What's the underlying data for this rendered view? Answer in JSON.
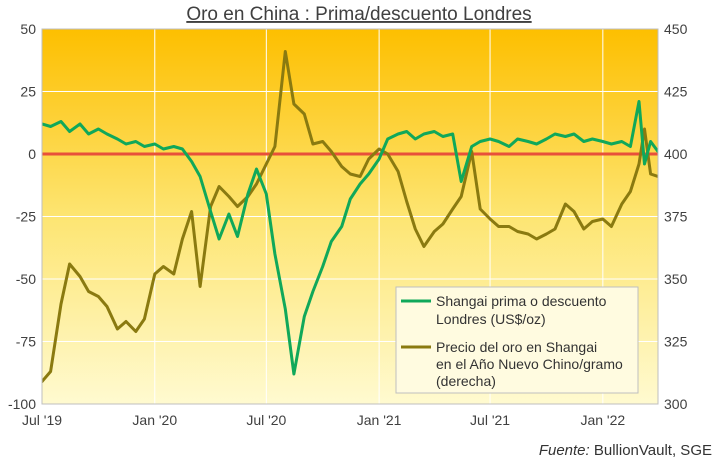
{
  "chart_data": {
    "type": "line",
    "title": "Oro en China : Prima/descuento  Londres",
    "source_prefix": "Fuente:",
    "source_text": " BullionVault, SGE",
    "x_ticks": [
      "Jul '19",
      "Jan '20",
      "Jul '20",
      "Jan '21",
      "Jul '21",
      "Jan '22"
    ],
    "y_left": {
      "ticks": [
        "50",
        "25",
        "0",
        "-25",
        "-50",
        "-75",
        "-100"
      ],
      "lim": [
        -100,
        50
      ]
    },
    "y_right": {
      "ticks": [
        "450",
        "425",
        "400",
        "375",
        "350",
        "325",
        "300"
      ],
      "lim": [
        300,
        450
      ]
    },
    "x_range": [
      "2019-07",
      "2022-04"
    ],
    "zero_line_color": "#e8503a",
    "grid": true,
    "legend_position": "bottom-right",
    "series": [
      {
        "name": "Shangai prima o descuento Londres (US$/oz)",
        "axis": "left",
        "color": "#10a85a",
        "points": [
          [
            "2019-07-01",
            12
          ],
          [
            "2019-07-15",
            11
          ],
          [
            "2019-08-01",
            13
          ],
          [
            "2019-08-15",
            9
          ],
          [
            "2019-09-01",
            12
          ],
          [
            "2019-09-15",
            8
          ],
          [
            "2019-10-01",
            10
          ],
          [
            "2019-10-15",
            8
          ],
          [
            "2019-11-01",
            6
          ],
          [
            "2019-11-15",
            4
          ],
          [
            "2019-12-01",
            5
          ],
          [
            "2019-12-15",
            3
          ],
          [
            "2020-01-01",
            4
          ],
          [
            "2020-01-15",
            2
          ],
          [
            "2020-02-01",
            3
          ],
          [
            "2020-02-15",
            2
          ],
          [
            "2020-03-01",
            -3
          ],
          [
            "2020-03-15",
            -9
          ],
          [
            "2020-04-01",
            -23
          ],
          [
            "2020-04-15",
            -34
          ],
          [
            "2020-05-01",
            -24
          ],
          [
            "2020-05-15",
            -33
          ],
          [
            "2020-06-01",
            -16
          ],
          [
            "2020-06-15",
            -6
          ],
          [
            "2020-07-01",
            -16
          ],
          [
            "2020-07-15",
            -40
          ],
          [
            "2020-08-01",
            -62
          ],
          [
            "2020-08-15",
            -88
          ],
          [
            "2020-09-01",
            -65
          ],
          [
            "2020-09-15",
            -55
          ],
          [
            "2020-10-01",
            -45
          ],
          [
            "2020-10-15",
            -35
          ],
          [
            "2020-11-01",
            -29
          ],
          [
            "2020-11-15",
            -18
          ],
          [
            "2020-12-01",
            -12
          ],
          [
            "2020-12-15",
            -8
          ],
          [
            "2021-01-01",
            -2
          ],
          [
            "2021-01-15",
            6
          ],
          [
            "2021-02-01",
            8
          ],
          [
            "2021-02-15",
            9
          ],
          [
            "2021-03-01",
            6
          ],
          [
            "2021-03-15",
            8
          ],
          [
            "2021-04-01",
            9
          ],
          [
            "2021-04-15",
            7
          ],
          [
            "2021-05-01",
            8
          ],
          [
            "2021-05-15",
            -11
          ],
          [
            "2021-06-01",
            3
          ],
          [
            "2021-06-15",
            5
          ],
          [
            "2021-07-01",
            6
          ],
          [
            "2021-07-15",
            5
          ],
          [
            "2021-08-01",
            3
          ],
          [
            "2021-08-15",
            6
          ],
          [
            "2021-09-01",
            5
          ],
          [
            "2021-09-15",
            4
          ],
          [
            "2021-10-01",
            6
          ],
          [
            "2021-10-15",
            8
          ],
          [
            "2021-11-01",
            7
          ],
          [
            "2021-11-15",
            8
          ],
          [
            "2021-12-01",
            5
          ],
          [
            "2021-12-15",
            6
          ],
          [
            "2022-01-01",
            5
          ],
          [
            "2022-01-15",
            4
          ],
          [
            "2022-02-01",
            5
          ],
          [
            "2022-02-15",
            3
          ],
          [
            "2022-03-01",
            21
          ],
          [
            "2022-03-10",
            -4
          ],
          [
            "2022-03-20",
            5
          ],
          [
            "2022-04-01",
            1
          ]
        ]
      },
      {
        "name": "Precio del oro en Shangai en el Año Nuevo Chino/gramo (derecha)",
        "axis": "right",
        "color": "#8a7a10",
        "points": [
          [
            "2019-07-01",
            309
          ],
          [
            "2019-07-15",
            313
          ],
          [
            "2019-08-01",
            340
          ],
          [
            "2019-08-15",
            356
          ],
          [
            "2019-09-01",
            351
          ],
          [
            "2019-09-15",
            345
          ],
          [
            "2019-10-01",
            343
          ],
          [
            "2019-10-15",
            339
          ],
          [
            "2019-11-01",
            330
          ],
          [
            "2019-11-15",
            333
          ],
          [
            "2019-12-01",
            329
          ],
          [
            "2019-12-15",
            334
          ],
          [
            "2020-01-01",
            352
          ],
          [
            "2020-01-15",
            355
          ],
          [
            "2020-02-01",
            352
          ],
          [
            "2020-02-15",
            366
          ],
          [
            "2020-03-01",
            377
          ],
          [
            "2020-03-15",
            347
          ],
          [
            "2020-04-01",
            379
          ],
          [
            "2020-04-15",
            387
          ],
          [
            "2020-05-01",
            383
          ],
          [
            "2020-05-15",
            379
          ],
          [
            "2020-06-01",
            383
          ],
          [
            "2020-06-15",
            388
          ],
          [
            "2020-07-01",
            396
          ],
          [
            "2020-07-15",
            403
          ],
          [
            "2020-08-01",
            441
          ],
          [
            "2020-08-15",
            420
          ],
          [
            "2020-09-01",
            416
          ],
          [
            "2020-09-15",
            404
          ],
          [
            "2020-10-01",
            405
          ],
          [
            "2020-10-15",
            401
          ],
          [
            "2020-11-01",
            395
          ],
          [
            "2020-11-15",
            392
          ],
          [
            "2020-12-01",
            391
          ],
          [
            "2020-12-15",
            398
          ],
          [
            "2021-01-01",
            402
          ],
          [
            "2021-01-15",
            400
          ],
          [
            "2021-02-01",
            393
          ],
          [
            "2021-02-15",
            381
          ],
          [
            "2021-03-01",
            370
          ],
          [
            "2021-03-15",
            363
          ],
          [
            "2021-04-01",
            369
          ],
          [
            "2021-04-15",
            372
          ],
          [
            "2021-05-01",
            378
          ],
          [
            "2021-05-15",
            383
          ],
          [
            "2021-06-01",
            401
          ],
          [
            "2021-06-15",
            378
          ],
          [
            "2021-07-01",
            374
          ],
          [
            "2021-07-15",
            371
          ],
          [
            "2021-08-01",
            371
          ],
          [
            "2021-08-15",
            369
          ],
          [
            "2021-09-01",
            368
          ],
          [
            "2021-09-15",
            366
          ],
          [
            "2021-10-01",
            368
          ],
          [
            "2021-10-15",
            370
          ],
          [
            "2021-11-01",
            380
          ],
          [
            "2021-11-15",
            377
          ],
          [
            "2021-12-01",
            370
          ],
          [
            "2021-12-15",
            373
          ],
          [
            "2022-01-01",
            374
          ],
          [
            "2022-01-15",
            371
          ],
          [
            "2022-02-01",
            380
          ],
          [
            "2022-02-15",
            385
          ],
          [
            "2022-03-01",
            396
          ],
          [
            "2022-03-10",
            410
          ],
          [
            "2022-03-20",
            392
          ],
          [
            "2022-04-01",
            391
          ]
        ]
      }
    ]
  }
}
